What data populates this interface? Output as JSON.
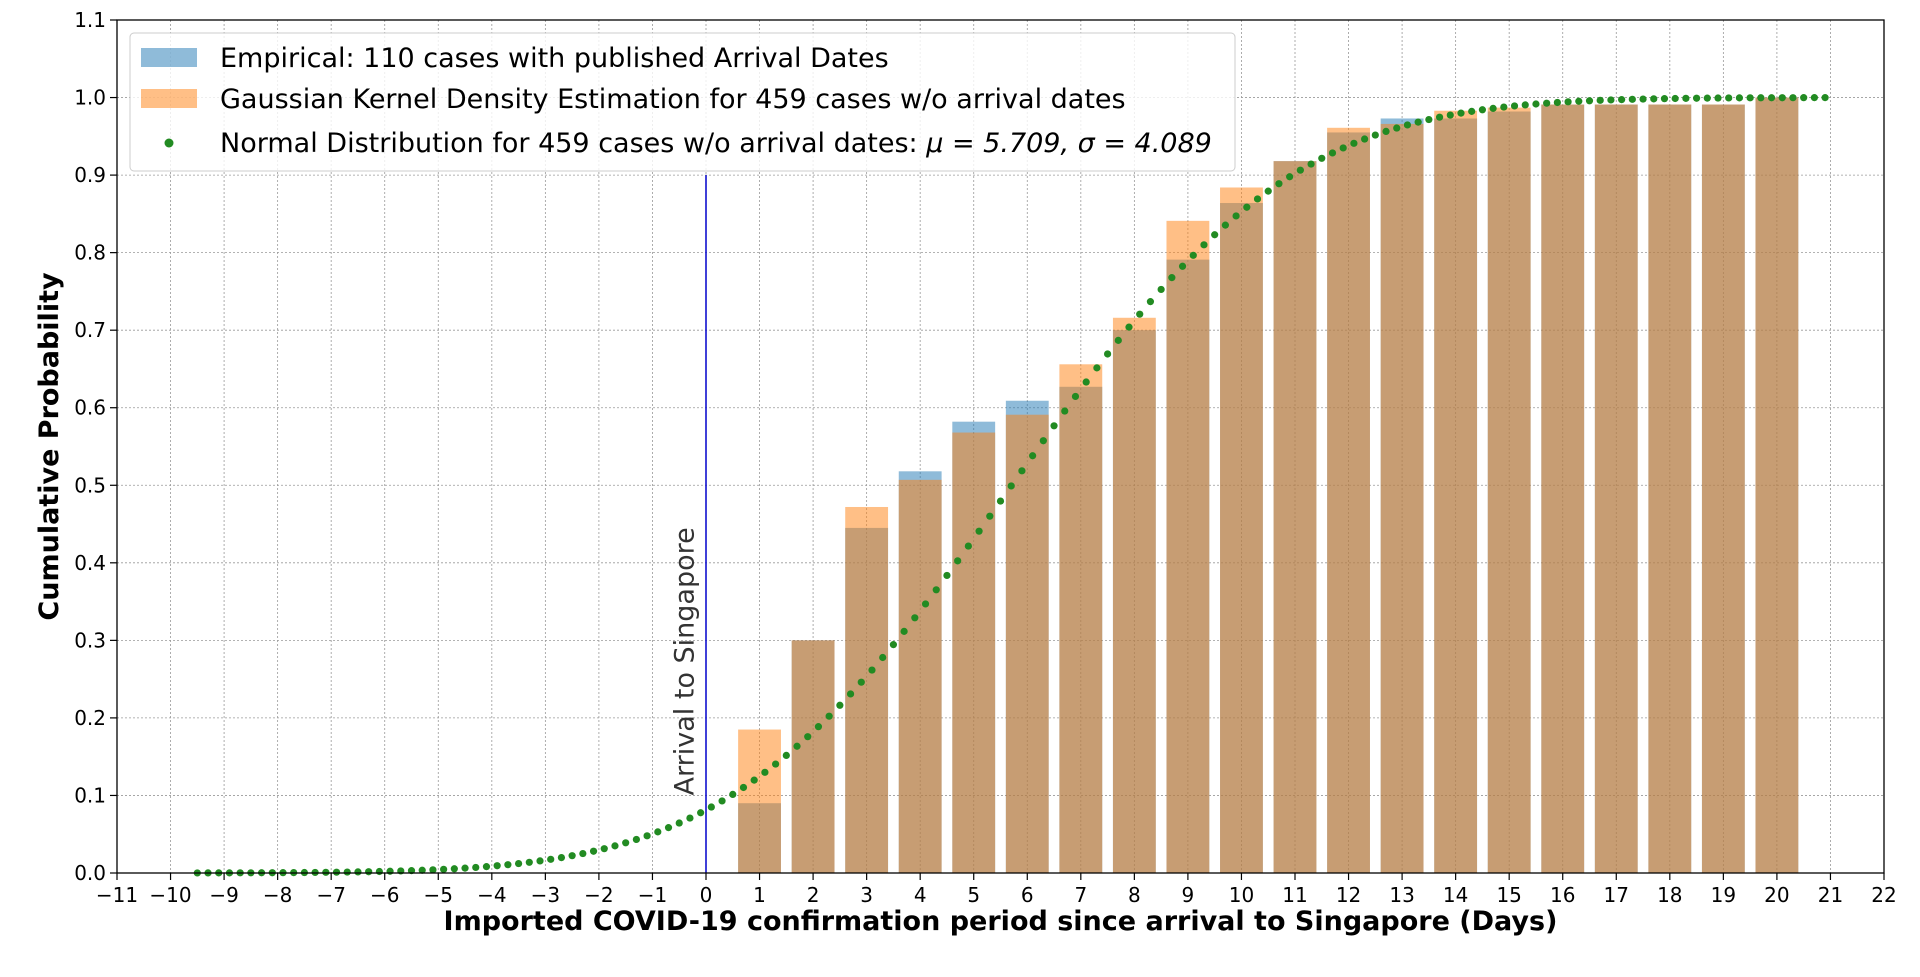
{
  "chart_data": {
    "type": "bar",
    "xlabel": "Imported COVID-19 confirmation period since arrival to Singapore (Days)",
    "ylabel": "Cumulative Probability",
    "xlim": [
      -11,
      22
    ],
    "ylim": [
      0,
      1.1
    ],
    "xticks": [
      -11,
      -10,
      -9,
      -8,
      -7,
      -6,
      -5,
      -4,
      -3,
      -2,
      -1,
      0,
      1,
      2,
      3,
      4,
      5,
      6,
      7,
      8,
      9,
      10,
      11,
      12,
      13,
      14,
      15,
      16,
      17,
      18,
      19,
      20,
      21,
      22
    ],
    "yticks": [
      0.0,
      0.1,
      0.2,
      0.3,
      0.4,
      0.5,
      0.6,
      0.7,
      0.8,
      0.9,
      1.0,
      1.1
    ],
    "grid": true,
    "legend_position": "top-left",
    "categories": [
      1,
      2,
      3,
      4,
      5,
      6,
      7,
      8,
      9,
      10,
      11,
      12,
      13,
      14,
      15,
      16,
      17,
      18,
      19,
      20
    ],
    "series": [
      {
        "name": "Empirical: 110 cases with published Arrival Dates",
        "kind": "bar",
        "color": "#1f77b4",
        "values": [
          0.09,
          0.3,
          0.445,
          0.518,
          0.582,
          0.609,
          0.627,
          0.7,
          0.791,
          0.864,
          0.918,
          0.955,
          0.973,
          0.973,
          0.982,
          0.991,
          0.991,
          0.991,
          0.991,
          1.0
        ]
      },
      {
        "name": "Gaussian Kernel Density Estimation for 459 cases w/o arrival dates",
        "kind": "bar",
        "color": "#ff7f0e",
        "values": [
          0.185,
          0.3,
          0.472,
          0.507,
          0.568,
          0.591,
          0.656,
          0.716,
          0.841,
          0.884,
          0.918,
          0.961,
          0.966,
          0.983,
          0.987,
          0.991,
          0.991,
          0.991,
          0.991,
          1.0
        ]
      },
      {
        "name": "Normal Distribution for 459 cases w/o arrival dates: ",
        "math": "μ = 5.709, σ = 4.089",
        "kind": "points",
        "color": "#228B22",
        "mu": 5.709,
        "sigma": 4.089,
        "x_start": -9.5,
        "x_end": 20.9,
        "x_step": 0.2
      }
    ],
    "vline": {
      "x": 0,
      "ymax": 0.9,
      "color": "#0000cc"
    },
    "annotation": {
      "text": "Arrival to Singapore",
      "x": -0.4,
      "y": 0.1
    }
  }
}
